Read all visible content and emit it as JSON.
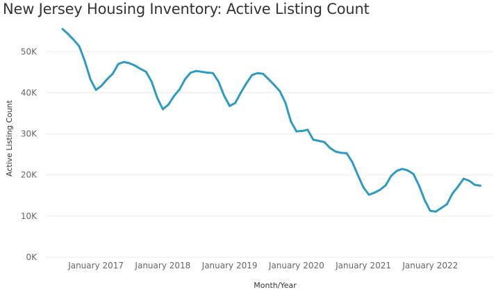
{
  "title": "New Jersey Housing Inventory: Active Listing Count",
  "chart_data": {
    "type": "line",
    "title": "New Jersey Housing Inventory: Active Listing Count",
    "xlabel": "Month/Year",
    "ylabel": "Active Listing Count",
    "x_tick_labels": [
      "January 2017",
      "January 2018",
      "January 2019",
      "January 2020",
      "January 2021",
      "January 2022"
    ],
    "y_tick_labels": [
      "0K",
      "10K",
      "20K",
      "30K",
      "40K",
      "50K"
    ],
    "ylim": [
      0,
      58000
    ],
    "grid": "horizontal",
    "line_color": "#2b9ac4",
    "x": [
      "2016-07",
      "2016-08",
      "2016-09",
      "2016-10",
      "2016-11",
      "2016-12",
      "2017-01",
      "2017-02",
      "2017-03",
      "2017-04",
      "2017-05",
      "2017-06",
      "2017-07",
      "2017-08",
      "2017-09",
      "2017-10",
      "2017-11",
      "2017-12",
      "2018-01",
      "2018-02",
      "2018-03",
      "2018-04",
      "2018-05",
      "2018-06",
      "2018-07",
      "2018-08",
      "2018-09",
      "2018-10",
      "2018-11",
      "2018-12",
      "2019-01",
      "2019-02",
      "2019-03",
      "2019-04",
      "2019-05",
      "2019-06",
      "2019-07",
      "2019-08",
      "2019-09",
      "2019-10",
      "2019-11",
      "2019-12",
      "2020-01",
      "2020-02",
      "2020-03",
      "2020-04",
      "2020-05",
      "2020-06",
      "2020-07",
      "2020-08",
      "2020-09",
      "2020-10",
      "2020-11",
      "2020-12",
      "2021-01",
      "2021-02",
      "2021-03",
      "2021-04",
      "2021-05",
      "2021-06",
      "2021-07",
      "2021-08",
      "2021-09",
      "2021-10",
      "2021-11",
      "2021-12",
      "2022-01",
      "2022-02",
      "2022-03",
      "2022-04",
      "2022-05",
      "2022-06",
      "2022-07",
      "2022-08",
      "2022-09",
      "2022-10"
    ],
    "values": [
      55500,
      54300,
      52900,
      51300,
      47700,
      43300,
      40700,
      41700,
      43300,
      44600,
      47000,
      47500,
      47200,
      46600,
      45800,
      45100,
      42700,
      38800,
      36000,
      37100,
      39200,
      40800,
      43300,
      44900,
      45300,
      45100,
      44900,
      44800,
      42700,
      39300,
      36800,
      37500,
      40000,
      42300,
      44300,
      44800,
      44600,
      43300,
      41900,
      40400,
      37600,
      33000,
      30600,
      30700,
      31000,
      28600,
      28300,
      28000,
      26600,
      25700,
      25400,
      25300,
      23200,
      20000,
      17000,
      15200,
      15700,
      16400,
      17500,
      19800,
      21000,
      21500,
      21100,
      20200,
      17400,
      13900,
      11300,
      11100,
      12000,
      12900,
      15500,
      17200,
      19100,
      18600,
      17600,
      17400
    ]
  }
}
